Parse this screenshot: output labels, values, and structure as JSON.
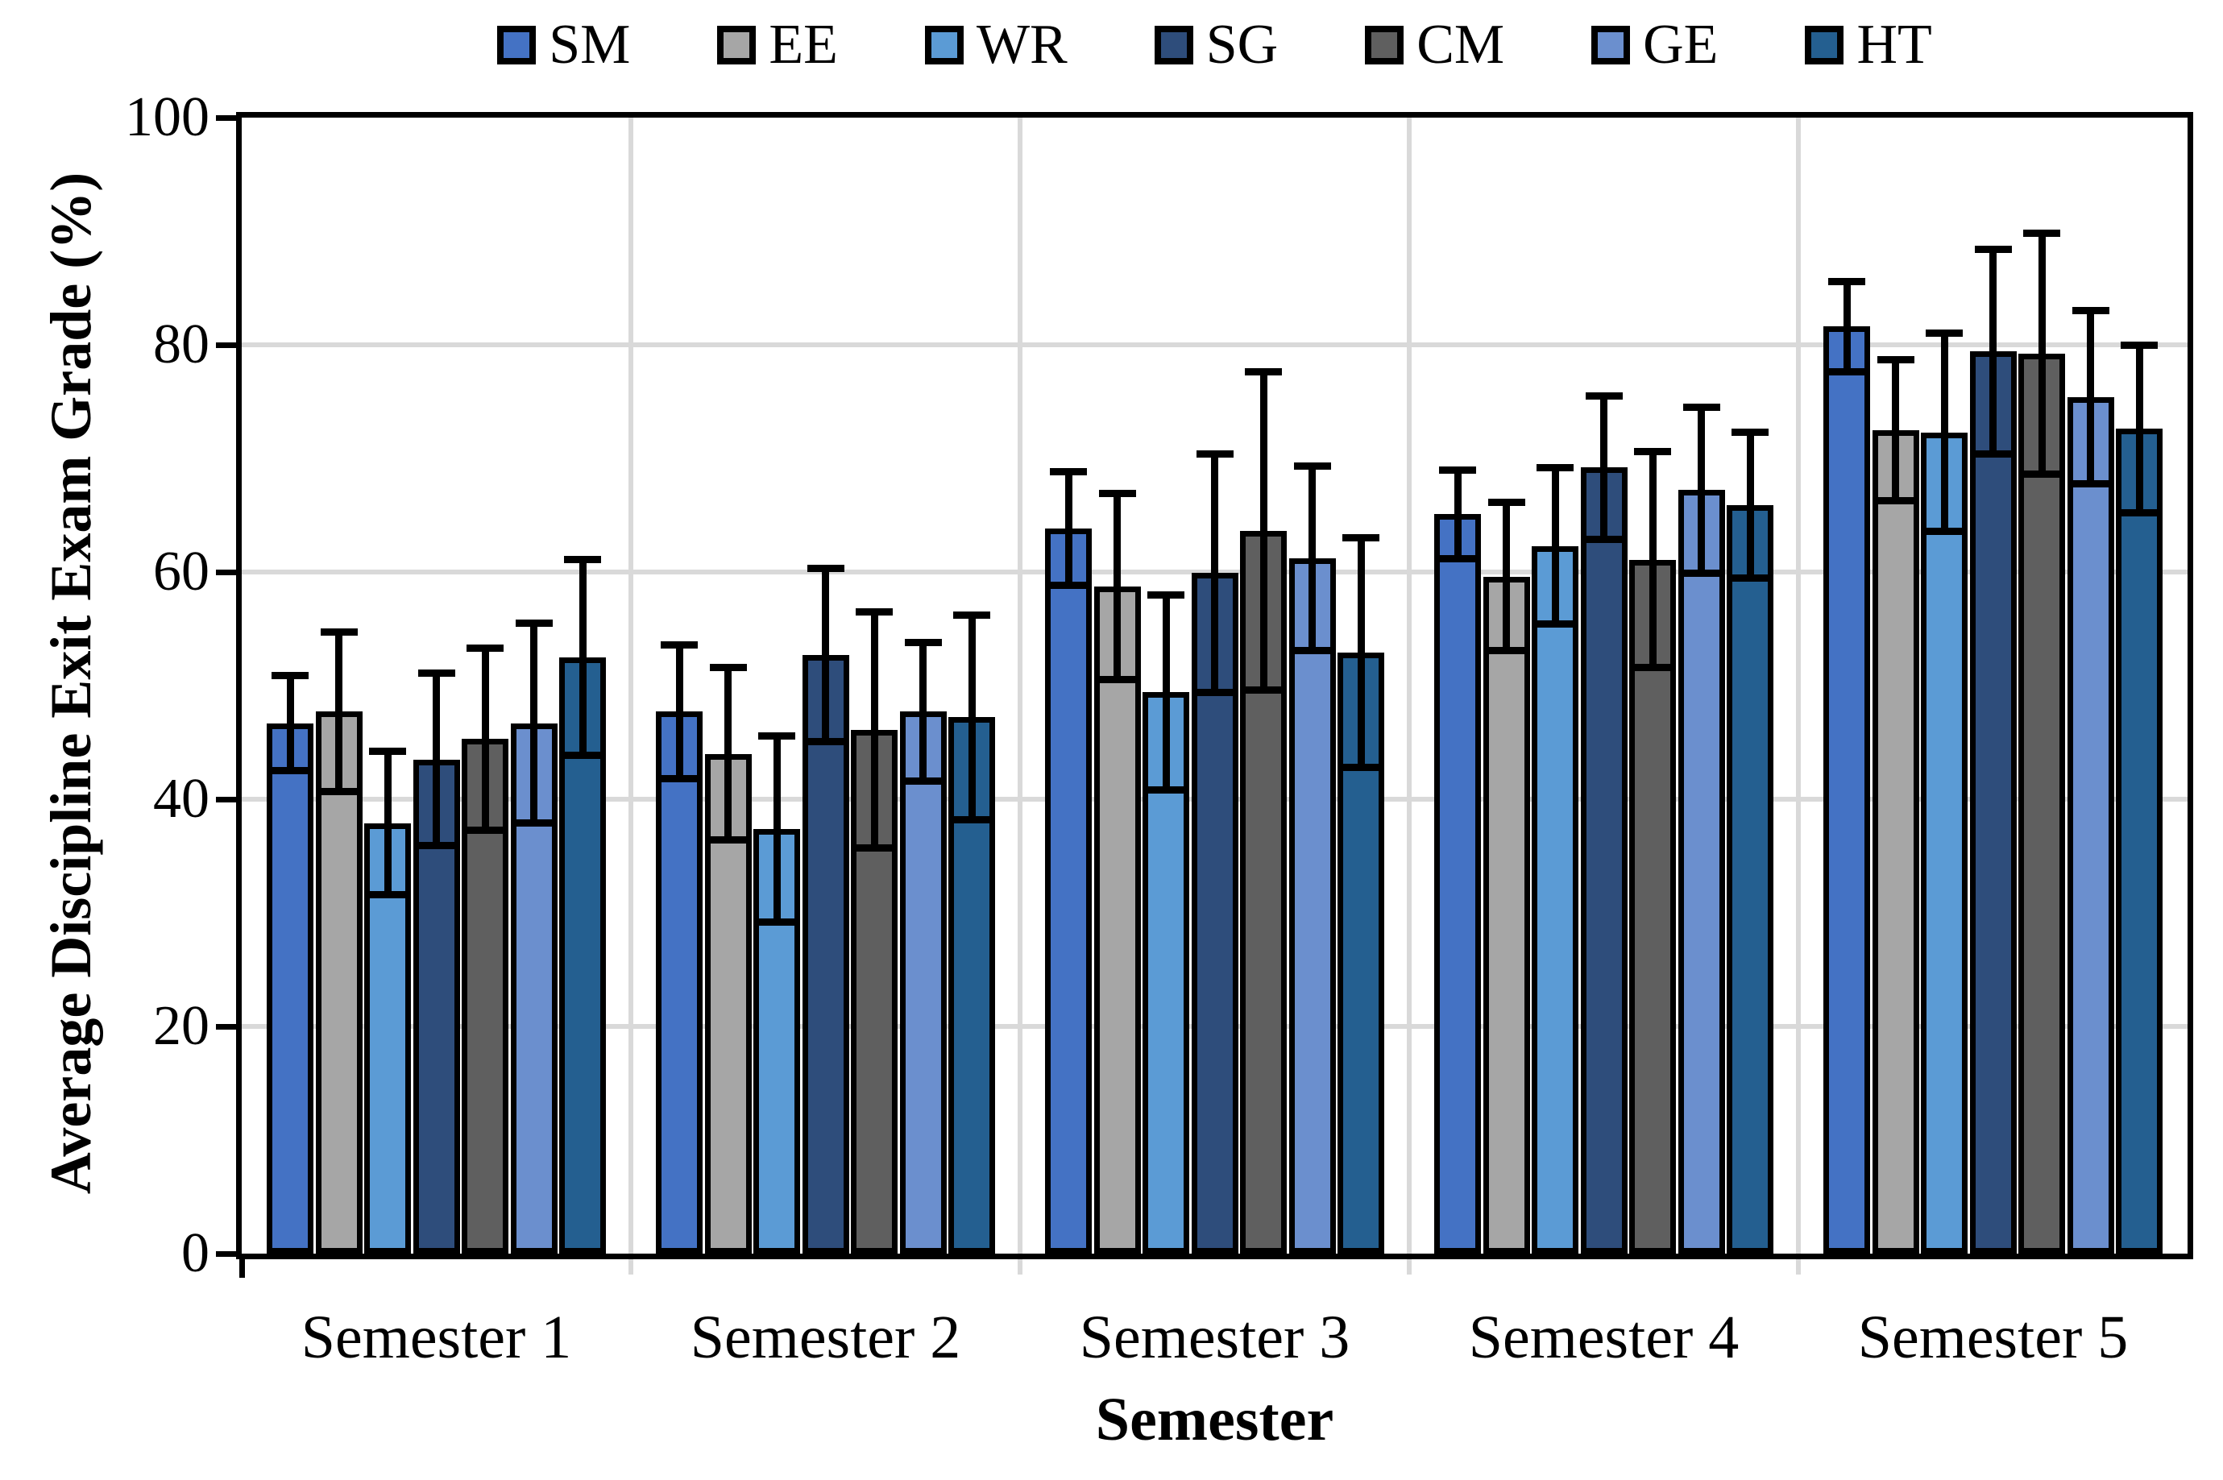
{
  "axes": {
    "y_title": "Average Discipline Exit Exam Grade (%)",
    "x_title": "Semester",
    "y_tick_labels": [
      "0",
      "20",
      "40",
      "60",
      "80",
      "100"
    ]
  },
  "colors": {
    "grid": "#d9d9d9",
    "axis": "#000000",
    "background": "#ffffff"
  },
  "chart_data": {
    "type": "bar",
    "title": "",
    "xlabel": "Semester",
    "ylabel": "Average Discipline Exit Exam Grade (%)",
    "ylim": [
      0,
      100
    ],
    "y_tick_step": 20,
    "grid": true,
    "legend_position": "top",
    "error_bars": true,
    "categories": [
      "Semester 1",
      "Semester 2",
      "Semester 3",
      "Semester 4",
      "Semester 5"
    ],
    "series": [
      {
        "name": "SM",
        "color": "#4472C4",
        "values": [
          46.7,
          47.7,
          63.8,
          65.1,
          81.6
        ],
        "errors": [
          4.2,
          5.9,
          5.0,
          3.9,
          4.0
        ]
      },
      {
        "name": "EE",
        "color": "#A6A6A6",
        "values": [
          47.7,
          44.0,
          58.7,
          59.6,
          72.5
        ],
        "errors": [
          7.0,
          7.6,
          8.2,
          6.5,
          6.2
        ]
      },
      {
        "name": "WR",
        "color": "#5B9BD5",
        "values": [
          37.9,
          37.4,
          49.4,
          62.3,
          72.3
        ],
        "errors": [
          6.3,
          8.2,
          8.6,
          6.9,
          8.7
        ]
      },
      {
        "name": "SG",
        "color": "#2E4D7B",
        "values": [
          43.5,
          52.7,
          59.9,
          69.2,
          79.4
        ],
        "errors": [
          7.6,
          7.6,
          10.5,
          6.3,
          9.0
        ]
      },
      {
        "name": "CM",
        "color": "#5F5F5F",
        "values": [
          45.3,
          46.1,
          63.6,
          61.1,
          79.2
        ],
        "errors": [
          8.0,
          10.4,
          14.0,
          9.5,
          10.6
        ]
      },
      {
        "name": "GE",
        "color": "#6B8FCE",
        "values": [
          46.7,
          47.7,
          61.2,
          67.2,
          75.4
        ],
        "errors": [
          8.8,
          6.1,
          8.1,
          7.3,
          7.6
        ]
      },
      {
        "name": "HT",
        "color": "#245F90",
        "values": [
          52.5,
          47.2,
          52.9,
          65.9,
          72.6
        ],
        "errors": [
          8.6,
          9.0,
          10.1,
          6.4,
          7.4
        ]
      }
    ]
  }
}
